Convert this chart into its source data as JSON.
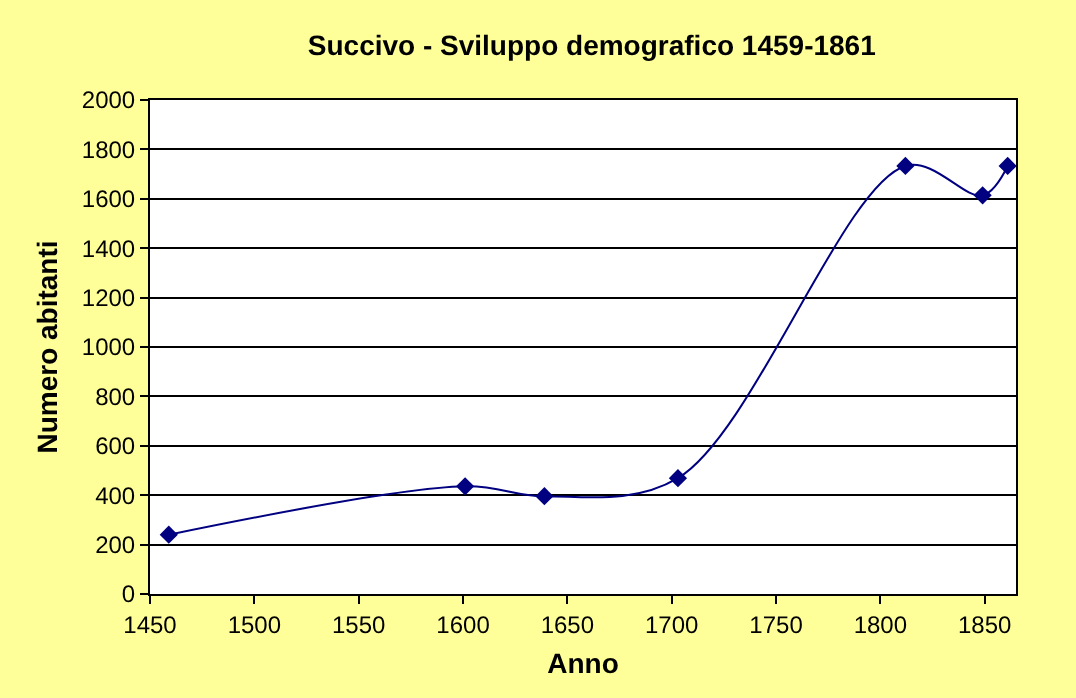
{
  "chart_data": {
    "type": "line",
    "title": "Succivo - Sviluppo demografico 1459-1861",
    "xlabel": "Anno",
    "ylabel": "Numero abitanti",
    "x": [
      1459,
      1601,
      1639,
      1703,
      1812,
      1849,
      1861
    ],
    "series": [
      {
        "color": "#000080",
        "values": [
          240,
          436,
          396,
          469,
          1733,
          1614,
          1733
        ]
      }
    ],
    "xlim": [
      1450,
      1865
    ],
    "xticks": [
      1450,
      1500,
      1550,
      1600,
      1650,
      1700,
      1750,
      1800,
      1850
    ],
    "ylim": [
      0,
      2000
    ],
    "yticks": [
      0,
      200,
      400,
      600,
      800,
      1000,
      1200,
      1400,
      1600,
      1800,
      2000
    ],
    "grid": "y",
    "legend": false,
    "marker": "diamond",
    "line_style": "solid"
  }
}
